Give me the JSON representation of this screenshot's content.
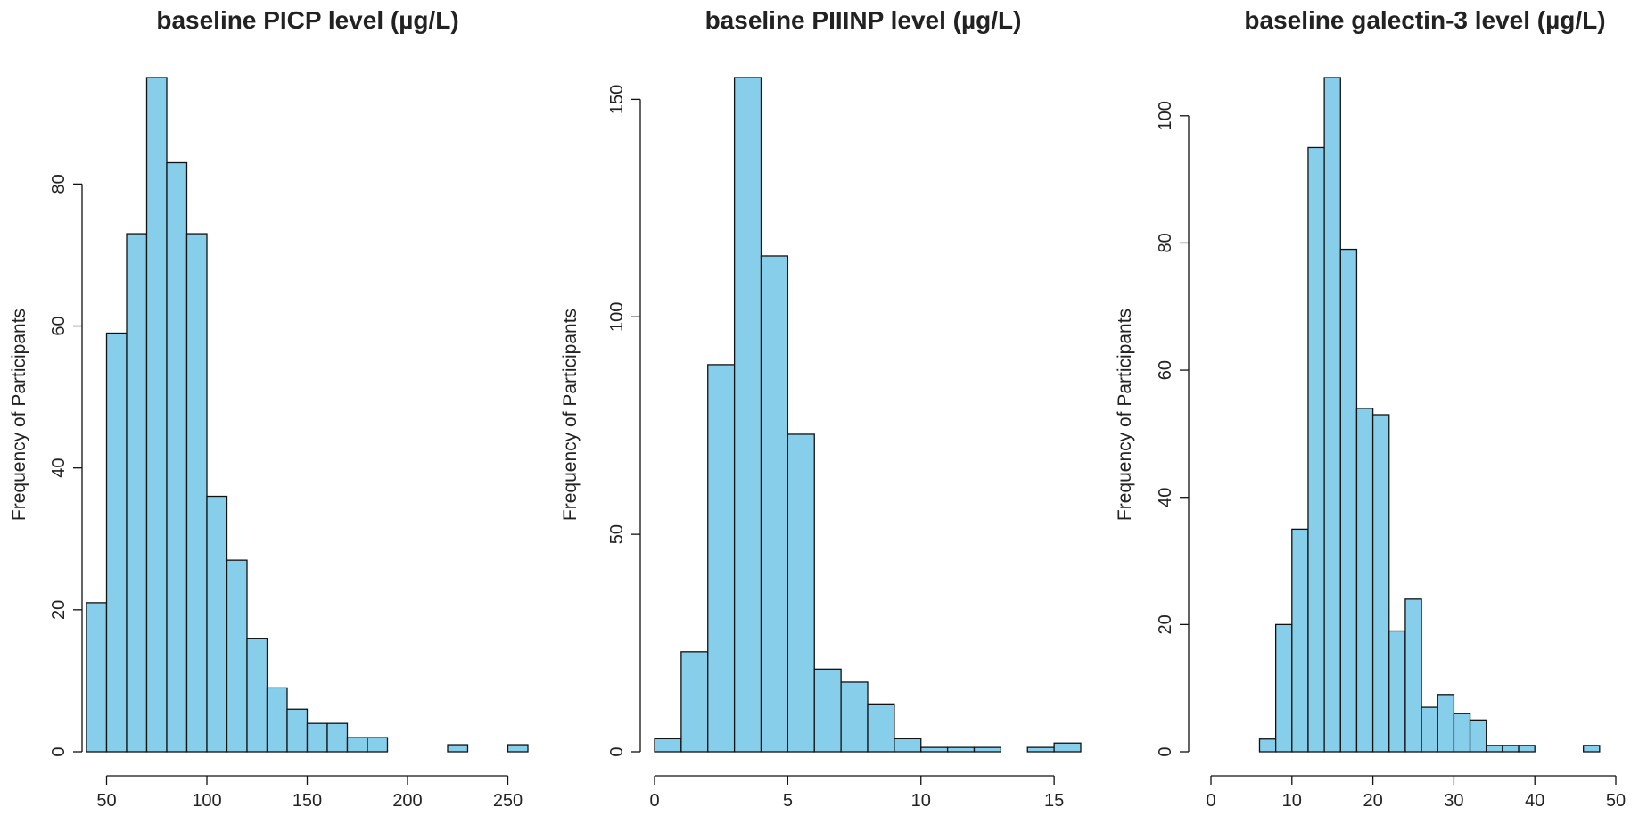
{
  "chart_data": [
    {
      "type": "bar",
      "title": "baseline PICP level (µg/L)",
      "xlabel": "",
      "ylabel": "Frequency of Participants",
      "xlim": [
        40,
        260
      ],
      "ylim": [
        0,
        95
      ],
      "x_ticks": [
        "50",
        "100",
        "150",
        "200",
        "250"
      ],
      "y_ticks": [
        "0",
        "20",
        "40",
        "60",
        "80"
      ],
      "bin_edges": [
        40,
        50,
        60,
        70,
        80,
        90,
        100,
        110,
        120,
        130,
        140,
        150,
        160,
        170,
        180,
        190,
        200,
        210,
        220,
        230,
        240,
        250,
        260
      ],
      "values": [
        21,
        59,
        73,
        95,
        83,
        73,
        36,
        27,
        16,
        9,
        6,
        4,
        4,
        2,
        2,
        0,
        0,
        0,
        1,
        0,
        0,
        1
      ],
      "bar_color": "#87ceeb",
      "grid": false
    },
    {
      "type": "bar",
      "title": "baseline PIIINP level (µg/L)",
      "xlabel": "",
      "ylabel": "Frequency of Participants",
      "xlim": [
        0,
        16
      ],
      "ylim": [
        0,
        155
      ],
      "x_ticks": [
        "0",
        "5",
        "10",
        "15"
      ],
      "y_ticks": [
        "0",
        "50",
        "100",
        "150"
      ],
      "bin_edges": [
        0,
        1,
        2,
        3,
        4,
        5,
        6,
        7,
        8,
        9,
        10,
        11,
        12,
        13,
        14,
        15,
        16
      ],
      "values": [
        3,
        23,
        89,
        155,
        114,
        73,
        19,
        16,
        11,
        3,
        1,
        1,
        1,
        0,
        1,
        2
      ],
      "bar_color": "#87ceeb",
      "grid": false
    },
    {
      "type": "bar",
      "title": "baseline galectin-3 level (µg/L)",
      "xlabel": "",
      "ylabel": "Frequency of Participants",
      "xlim": [
        0,
        50
      ],
      "ylim": [
        0,
        106
      ],
      "x_ticks": [
        "0",
        "10",
        "20",
        "30",
        "40",
        "50"
      ],
      "y_ticks": [
        "0",
        "20",
        "40",
        "60",
        "80",
        "100"
      ],
      "bin_edges": [
        6,
        8,
        10,
        12,
        14,
        16,
        18,
        20,
        22,
        24,
        26,
        28,
        30,
        32,
        34,
        36,
        38,
        40,
        42,
        44,
        46,
        48
      ],
      "values": [
        2,
        20,
        35,
        95,
        106,
        79,
        54,
        53,
        19,
        24,
        7,
        9,
        6,
        5,
        1,
        1,
        1,
        0,
        0,
        0,
        1
      ],
      "bar_color": "#87ceeb",
      "grid": false
    }
  ]
}
